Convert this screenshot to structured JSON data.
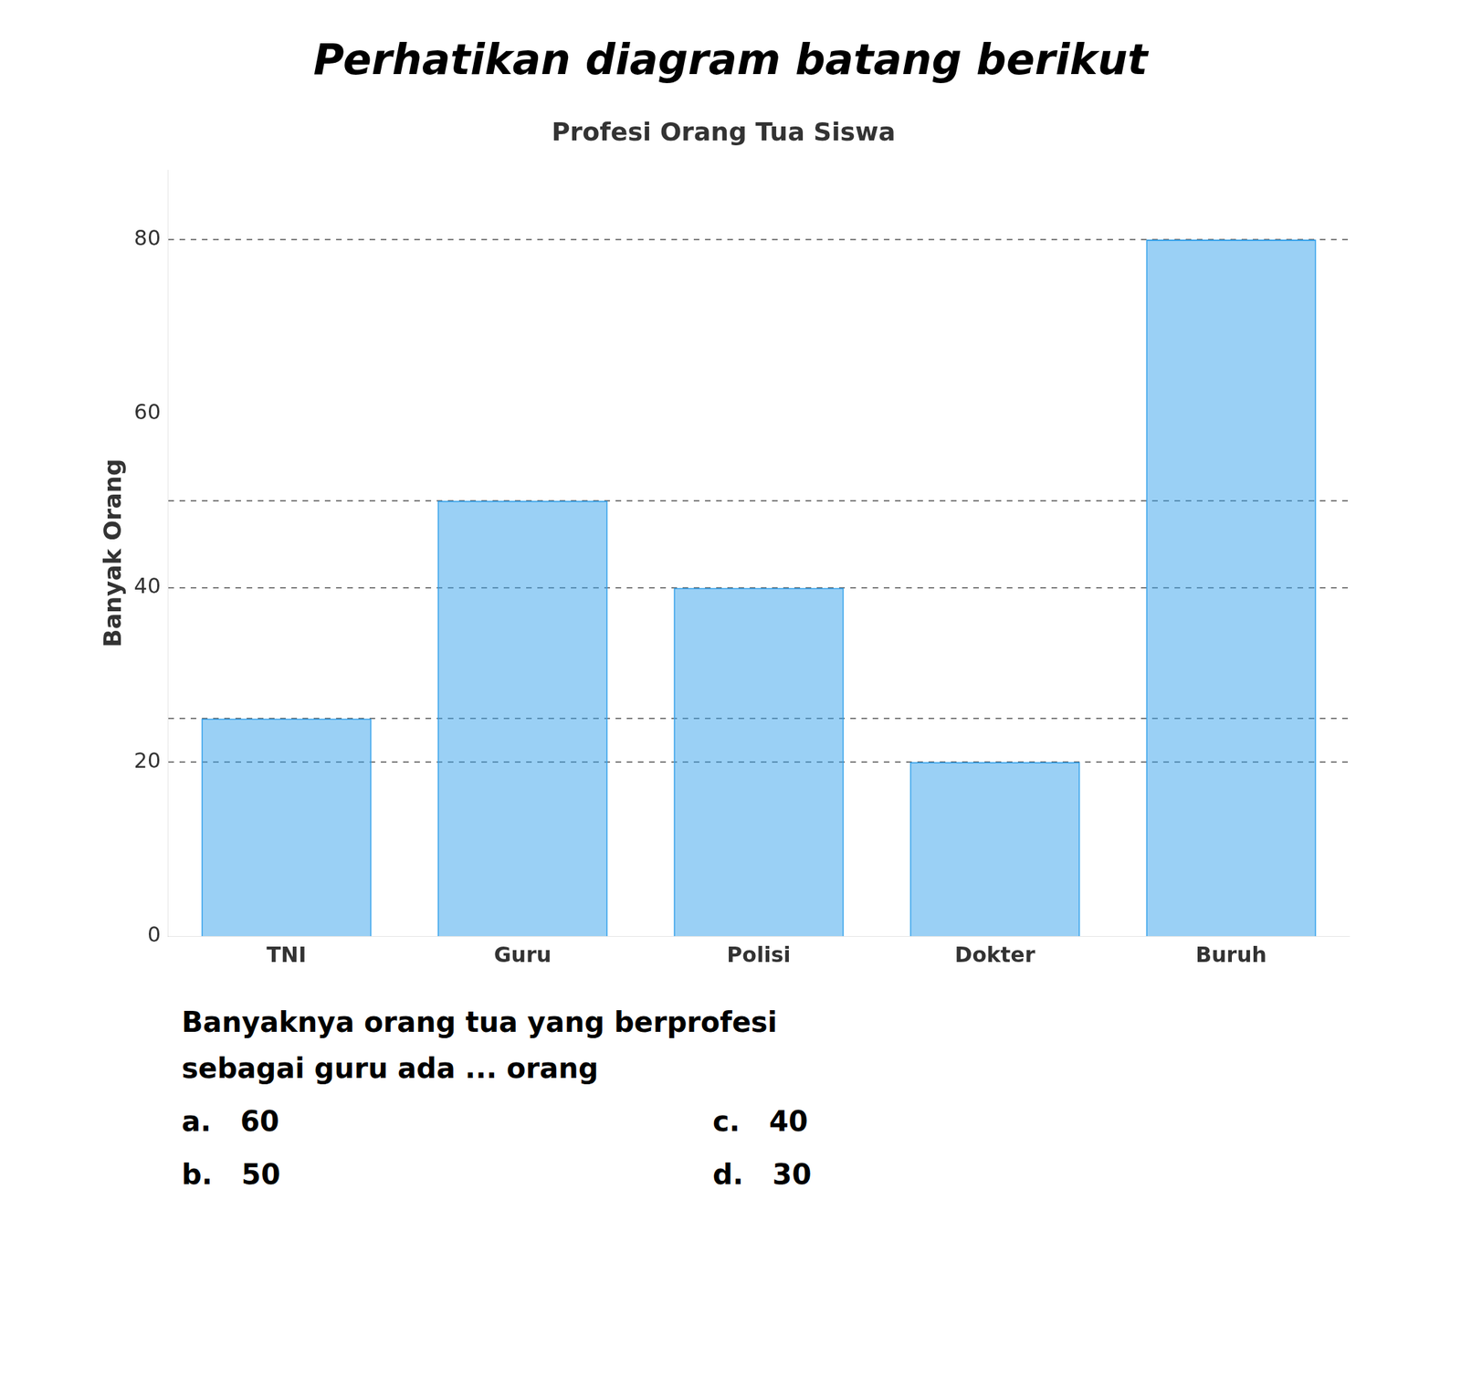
{
  "chart_data": {
    "type": "bar",
    "title": "Perhatikan diagram batang berikut",
    "subtitle": "Profesi Orang Tua Siswa",
    "y_label": "Banyak Orang",
    "categories": [
      "TNI",
      "Guru",
      "Polisi",
      "Dokter",
      "Buruh"
    ],
    "values": [
      25,
      50,
      40,
      20,
      80
    ],
    "ylim": [
      0,
      88
    ],
    "yticks": [
      0,
      20,
      40,
      60,
      80
    ],
    "hlines": [
      20,
      25,
      40,
      50,
      80
    ],
    "grid": false,
    "annotations": [
      "Banyaknya orang tua yang berprofesi",
      "sebagai guru ada ... orang",
      "a.   60",
      "c.   40",
      "b.   50",
      "d.   30"
    ]
  }
}
